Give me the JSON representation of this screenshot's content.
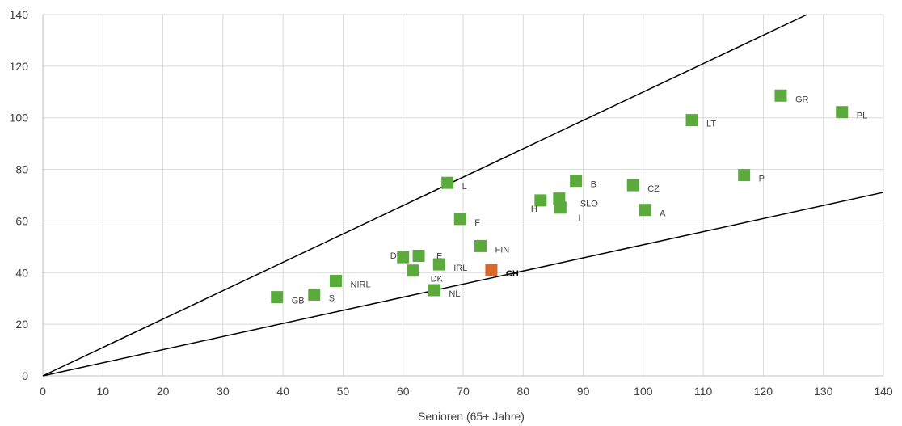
{
  "chart_data": {
    "type": "scatter",
    "xlabel": "Senioren (65+ Jahre)",
    "ylabel": "",
    "xlim": [
      0,
      140
    ],
    "ylim": [
      0,
      140
    ],
    "xticks": [
      0,
      10,
      20,
      30,
      40,
      50,
      60,
      70,
      80,
      90,
      100,
      110,
      120,
      130,
      140
    ],
    "yticks": [
      0,
      20,
      40,
      60,
      80,
      100,
      120,
      140
    ],
    "grid": true,
    "colors": {
      "default": "#5aaa3c",
      "highlight": "#d9692a"
    },
    "reference_lines": [
      {
        "slope": 1.1
      },
      {
        "slope": 0.508
      }
    ],
    "points": [
      {
        "label": "GB",
        "x": 39,
        "y": 30.5
      },
      {
        "label": "S",
        "x": 45.2,
        "y": 31.5
      },
      {
        "label": "NIRL",
        "x": 48.8,
        "y": 36.8
      },
      {
        "label": "D",
        "x": 60,
        "y": 46
      },
      {
        "label": "E",
        "x": 62.6,
        "y": 46.5
      },
      {
        "label": "DK",
        "x": 61.6,
        "y": 40.8
      },
      {
        "label": "IRL",
        "x": 66,
        "y": 43.2
      },
      {
        "label": "NL",
        "x": 65.2,
        "y": 33.2
      },
      {
        "label": "L",
        "x": 67.4,
        "y": 74.8
      },
      {
        "label": "F",
        "x": 69.5,
        "y": 60.8
      },
      {
        "label": "FIN",
        "x": 72.9,
        "y": 50.3
      },
      {
        "label": "CH",
        "x": 74.7,
        "y": 41,
        "highlight": true
      },
      {
        "label": "H",
        "x": 82.9,
        "y": 68
      },
      {
        "label": "SLO",
        "x": 86,
        "y": 68.7
      },
      {
        "label": "I",
        "x": 86.2,
        "y": 65.2
      },
      {
        "label": "B",
        "x": 88.8,
        "y": 75.6
      },
      {
        "label": "CZ",
        "x": 98.3,
        "y": 73.9
      },
      {
        "label": "A",
        "x": 100.3,
        "y": 64.3
      },
      {
        "label": "LT",
        "x": 108.1,
        "y": 99.1
      },
      {
        "label": "P",
        "x": 116.8,
        "y": 77.8
      },
      {
        "label": "GR",
        "x": 122.9,
        "y": 108.6
      },
      {
        "label": "PL",
        "x": 133.1,
        "y": 102.2
      }
    ]
  }
}
